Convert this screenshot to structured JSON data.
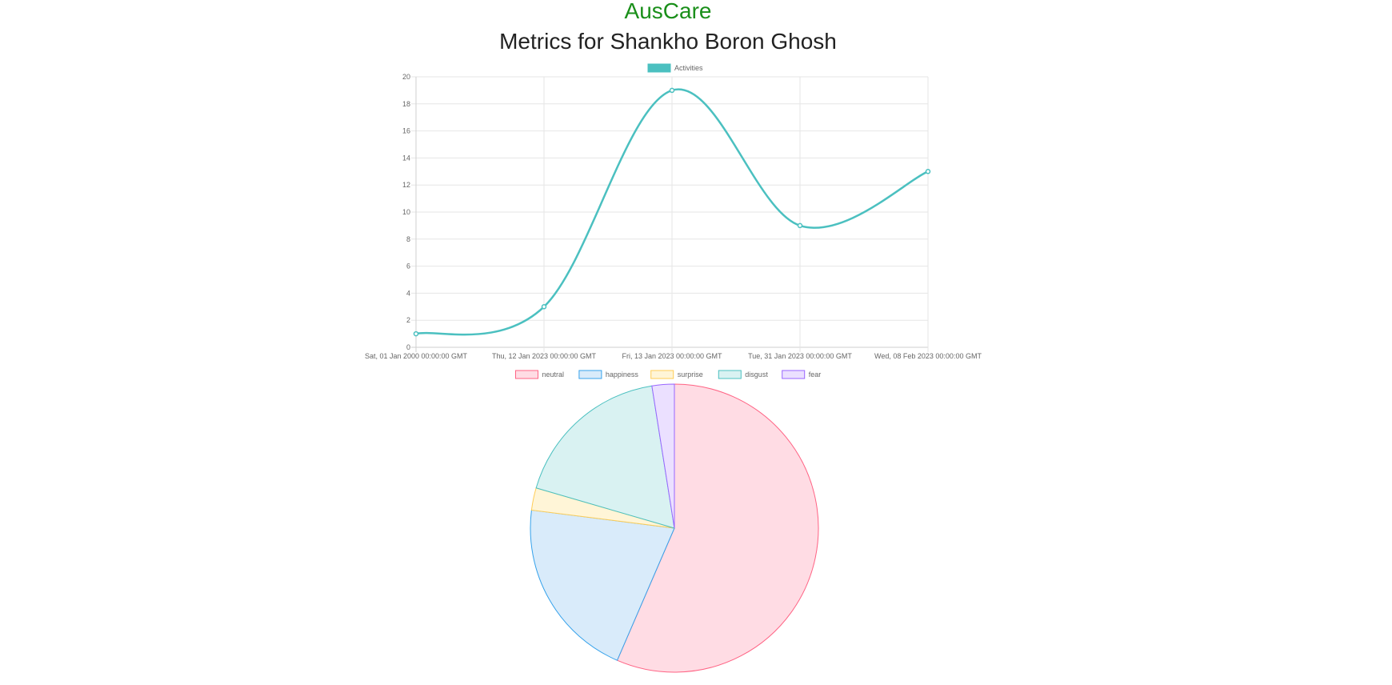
{
  "header": {
    "brand": "AusCare",
    "title": "Metrics for Shankho Boron Ghosh"
  },
  "chart_data": [
    {
      "type": "line",
      "title": "",
      "xlabel": "",
      "ylabel": "",
      "categories": [
        "Sat, 01 Jan 2000 00:00:00 GMT",
        "Thu, 12 Jan 2023 00:00:00 GMT",
        "Fri, 13 Jan 2023 00:00:00 GMT",
        "Tue, 31 Jan 2023 00:00:00 GMT",
        "Wed, 08 Feb 2023 00:00:00 GMT"
      ],
      "series": [
        {
          "name": "Activities",
          "values": [
            1,
            3,
            19,
            9,
            13
          ],
          "color": "#4bc0c0"
        }
      ],
      "ylim": [
        0,
        20
      ],
      "yticks": [
        0,
        2,
        4,
        6,
        8,
        10,
        12,
        14,
        16,
        18,
        20
      ],
      "grid": true,
      "legend": "top-center"
    },
    {
      "type": "pie",
      "labels": [
        "neutral",
        "happiness",
        "surprise",
        "disgust",
        "fear"
      ],
      "values": [
        56.5,
        20.5,
        2.5,
        18.0,
        2.5
      ],
      "colors": {
        "fill": [
          "#ffdce4",
          "#d9ebfa",
          "#fff5d7",
          "#d9f2f2",
          "#ebe0ff"
        ],
        "border": [
          "#ff6384",
          "#36a2eb",
          "#ffcd56",
          "#4bc0c0",
          "#9966ff"
        ]
      },
      "legend": "top-center"
    }
  ]
}
